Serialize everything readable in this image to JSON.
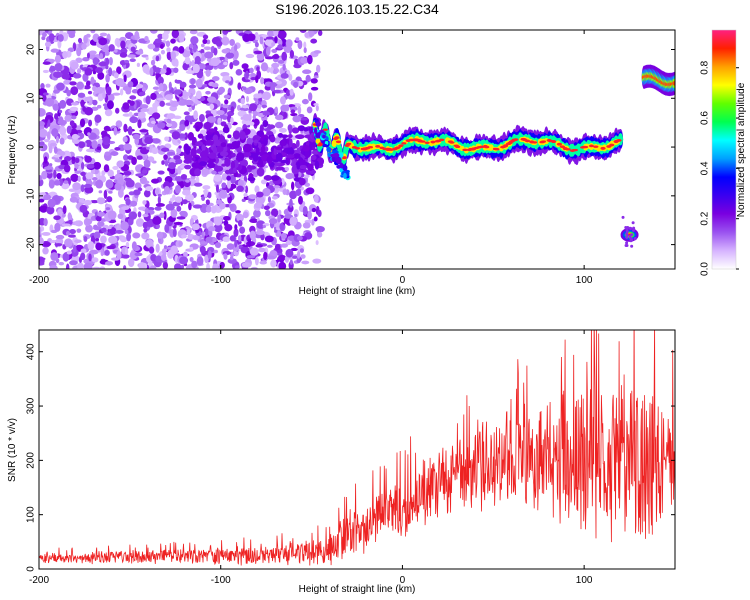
{
  "title": "S196.2026.103.15.22.C34",
  "chart_data": [
    {
      "type": "heatmap",
      "name": "spectrogram",
      "xlabel": "Height of straight line (km)",
      "ylabel": "Frequency (Hz)",
      "xlim": [
        -200,
        150
      ],
      "ylim": [
        -25,
        24
      ],
      "xticks": [
        -200,
        -100,
        0,
        100
      ],
      "yticks": [
        20,
        10,
        0,
        -10,
        -20
      ],
      "colorbar": {
        "label": "Normalized spectral amplitude",
        "range": [
          0,
          0.95
        ],
        "ticks": [
          0,
          0.2,
          0.4,
          0.6,
          0.8
        ],
        "colors": [
          "#ffffff",
          "#d6b3ff",
          "#9a52f0",
          "#7a00e0",
          "#3a00f0",
          "#0000ff",
          "#00a0ff",
          "#00ffff",
          "#00ff50",
          "#60ff00",
          "#ffff00",
          "#ffa000",
          "#ff2000",
          "#ff2080"
        ]
      },
      "features": [
        {
          "description": "noise",
          "x_range": [
            -200,
            -45
          ],
          "freq_range": [
            -25,
            24
          ],
          "amplitude": 0.1
        },
        {
          "description": "main trace",
          "x_range": [
            -48,
            120
          ],
          "freq_center": 0.5,
          "amplitude": 0.8
        },
        {
          "description": "blob",
          "x": 125,
          "freq": -18,
          "amplitude": 0.85
        },
        {
          "description": "high trace",
          "x_range": [
            133,
            150
          ],
          "freq_center": 14,
          "amplitude": 0.8
        }
      ]
    },
    {
      "type": "line",
      "name": "snr",
      "xlabel": "Height of straight line (km)",
      "ylabel": "SNR (10 * v/v)",
      "xlim": [
        -200,
        150
      ],
      "ylim": [
        0,
        440
      ],
      "xticks": [
        -200,
        -100,
        0,
        100
      ],
      "yticks": [
        0,
        100,
        200,
        300,
        400
      ],
      "color": "#ee2222",
      "envelope": {
        "x": [
          -200,
          -150,
          -100,
          -60,
          -40,
          -30,
          -20,
          -10,
          0,
          10,
          20,
          30,
          40,
          50,
          60,
          70,
          80,
          90,
          100,
          110,
          120,
          130,
          140,
          150
        ],
        "mean": [
          20,
          22,
          24,
          28,
          35,
          65,
          80,
          95,
          115,
          135,
          155,
          170,
          185,
          195,
          200,
          205,
          205,
          205,
          200,
          200,
          200,
          195,
          190,
          190
        ],
        "spread": [
          10,
          12,
          14,
          20,
          30,
          40,
          45,
          50,
          55,
          60,
          65,
          70,
          75,
          80,
          85,
          95,
          105,
          115,
          125,
          140,
          150,
          150,
          130,
          110
        ]
      }
    }
  ]
}
